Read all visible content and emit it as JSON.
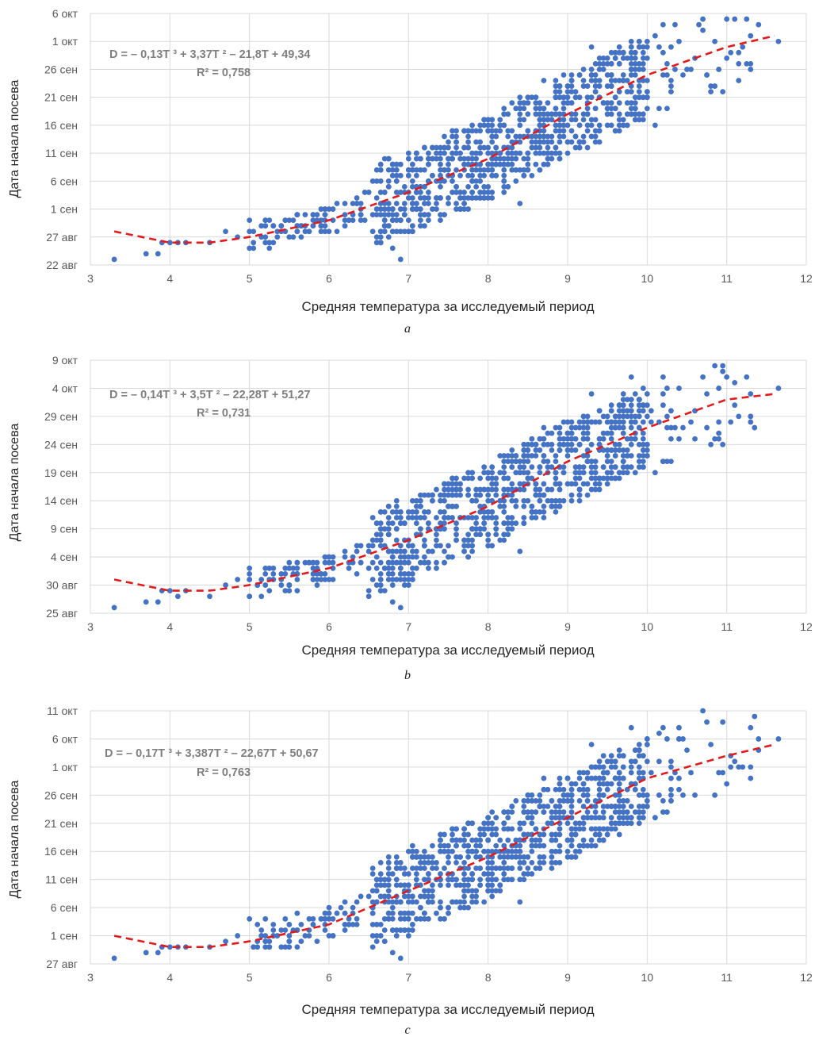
{
  "charts": [
    {
      "caption": "a",
      "equation": "D = – 0,13T ³ + 3,37T ² – 21,8T + 49,34",
      "r2": "R² = 0,758",
      "xlabel": "Средняя температура за исследуемый период",
      "ylabel": "Дата начала посева"
    },
    {
      "caption": "b",
      "equation": "D = – 0,14T ³ + 3,5T ² – 22,28T + 51,27",
      "r2": "R² = 0,731",
      "xlabel": "Средняя температура за исследуемый период",
      "ylabel": "Дата начала посева"
    },
    {
      "caption": "c",
      "equation": "D = – 0,17T ³ + 3,387T ² – 22,67T + 50,67",
      "r2": "R² = 0,763",
      "xlabel": "Средняя температура за исследуемый период",
      "ylabel": "Дата начала посева"
    }
  ],
  "colors": {
    "points": "#4472c4",
    "trend": "#e31a1c",
    "grid": "#d9d9d9"
  },
  "chart_data": [
    {
      "type": "scatter",
      "xlabel": "Средняя температура за исследуемый период",
      "ylabel": "Дата начала посева",
      "xlim": [
        3,
        12
      ],
      "xticks": [
        "3",
        "4",
        "5",
        "6",
        "7",
        "8",
        "9",
        "10",
        "11",
        "12"
      ],
      "ylim": [
        "22 авг",
        "6 окт"
      ],
      "yticks": [
        "22 авг",
        "27 авг",
        "1 сен",
        "6 сен",
        "11 сен",
        "16 сен",
        "21 сен",
        "26 сен",
        "1 окт",
        "6 окт"
      ],
      "grid": true,
      "trendline": {
        "type": "polynomial",
        "degree": 3,
        "equation": "D = – 0,13T ³ + 3,37T ² – 21,8T + 49,34",
        "r2": 0.758,
        "points": [
          [
            3.3,
            "28 авг"
          ],
          [
            4.0,
            "26 авг"
          ],
          [
            4.5,
            "26 авг"
          ],
          [
            5.0,
            "27 авг"
          ],
          [
            6.0,
            "30 авг"
          ],
          [
            7.0,
            "4 сен"
          ],
          [
            8.0,
            "10 сен"
          ],
          [
            9.0,
            "18 сен"
          ],
          [
            10.0,
            "25 сен"
          ],
          [
            11.0,
            "30 сен"
          ],
          [
            11.6,
            "2 окт"
          ]
        ]
      },
      "points": [
        [
          3.3,
          "23 авг"
        ],
        [
          3.7,
          "24 авг"
        ],
        [
          3.85,
          "24 авг"
        ],
        [
          3.9,
          "26 авг"
        ],
        [
          4.0,
          "26 авг"
        ],
        [
          4.1,
          "26 авг"
        ],
        [
          4.2,
          "26 авг"
        ],
        [
          4.5,
          "26 авг"
        ],
        [
          4.7,
          "28 авг"
        ],
        [
          4.85,
          "27 авг"
        ],
        [
          5.0,
          "30 авг"
        ],
        [
          5.2,
          "30 авг"
        ],
        [
          5.4,
          "29 авг"
        ],
        [
          5.6,
          "31 авг"
        ],
        [
          5.8,
          "30 авг"
        ],
        [
          6.0,
          "1 сен"
        ],
        [
          6.2,
          "2 сен"
        ],
        [
          6.4,
          "2 сен"
        ],
        [
          6.6,
          "3 сен"
        ],
        [
          6.8,
          "25 авг"
        ],
        [
          6.9,
          "23 авг"
        ],
        [
          7.0,
          "28 авг"
        ],
        [
          7.1,
          "5 сен"
        ],
        [
          7.2,
          "8 сен"
        ],
        [
          7.3,
          "12 сен"
        ],
        [
          7.4,
          "6 сен"
        ],
        [
          7.5,
          "10 сен"
        ],
        [
          7.6,
          "15 сен"
        ],
        [
          7.7,
          "4 сен"
        ],
        [
          7.8,
          "11 сен"
        ],
        [
          7.9,
          "13 сен"
        ],
        [
          8.0,
          "9 сен"
        ],
        [
          8.1,
          "14 сен"
        ],
        [
          8.2,
          "18 сен"
        ],
        [
          8.3,
          "11 сен"
        ],
        [
          8.4,
          "2 сен"
        ],
        [
          8.5,
          "20 сен"
        ],
        [
          8.6,
          "13 сен"
        ],
        [
          8.7,
          "24 сен"
        ],
        [
          8.8,
          "10 сен"
        ],
        [
          8.9,
          "17 сен"
        ],
        [
          9.0,
          "20 сен"
        ],
        [
          9.1,
          "14 сен"
        ],
        [
          9.2,
          "23 сен"
        ],
        [
          9.3,
          "30 сен"
        ],
        [
          9.4,
          "13 сен"
        ],
        [
          9.5,
          "25 сен"
        ],
        [
          9.6,
          "19 сен"
        ],
        [
          9.8,
          "1 окт"
        ],
        [
          9.9,
          "26 сен"
        ],
        [
          10.0,
          "30 сен"
        ],
        [
          10.1,
          "16 сен"
        ],
        [
          10.2,
          "4 окт"
        ],
        [
          10.3,
          "24 сен"
        ],
        [
          10.4,
          "1 окт"
        ],
        [
          10.7,
          "3 окт"
        ],
        [
          10.9,
          "26 сен"
        ],
        [
          11.1,
          "5 окт"
        ],
        [
          11.3,
          "27 сен"
        ],
        [
          11.65,
          "1 окт"
        ]
      ]
    },
    {
      "type": "scatter",
      "xlabel": "Средняя температура за исследуемый период",
      "ylabel": "Дата начала посева",
      "xlim": [
        3,
        12
      ],
      "xticks": [
        "3",
        "4",
        "5",
        "6",
        "7",
        "8",
        "9",
        "10",
        "11",
        "12"
      ],
      "ylim": [
        "25 авг",
        "9 окт"
      ],
      "yticks": [
        "25 авг",
        "30 авг",
        "4 сен",
        "9 сен",
        "14 сен",
        "19 сен",
        "24 сен",
        "29 сен",
        "4 окт",
        "9 окт"
      ],
      "grid": true,
      "trendline": {
        "type": "polynomial",
        "degree": 3,
        "equation": "D = – 0,14T ³ + 3,5T ² – 22,28T + 51,27",
        "r2": 0.731,
        "points": [
          [
            3.3,
            "31 авг"
          ],
          [
            4.0,
            "29 авг"
          ],
          [
            4.5,
            "29 авг"
          ],
          [
            5.0,
            "30 авг"
          ],
          [
            6.0,
            "2 сен"
          ],
          [
            7.0,
            "7 сен"
          ],
          [
            8.0,
            "13 сен"
          ],
          [
            9.0,
            "21 сен"
          ],
          [
            10.0,
            "27 сен"
          ],
          [
            11.0,
            "2 окт"
          ],
          [
            11.6,
            "3 окт"
          ]
        ]
      },
      "points": [
        [
          3.3,
          "26 авг"
        ],
        [
          3.7,
          "27 авг"
        ],
        [
          3.85,
          "27 авг"
        ],
        [
          3.9,
          "29 авг"
        ],
        [
          4.0,
          "29 авг"
        ],
        [
          4.1,
          "28 авг"
        ],
        [
          4.2,
          "29 авг"
        ],
        [
          4.5,
          "28 авг"
        ],
        [
          4.7,
          "30 авг"
        ],
        [
          4.85,
          "31 авг"
        ],
        [
          5.0,
          "2 сен"
        ],
        [
          5.2,
          "2 сен"
        ],
        [
          5.4,
          "31 авг"
        ],
        [
          5.6,
          "3 сен"
        ],
        [
          5.8,
          "1 сен"
        ],
        [
          6.0,
          "4 сен"
        ],
        [
          6.2,
          "5 сен"
        ],
        [
          6.4,
          "6 сен"
        ],
        [
          6.6,
          "7 сен"
        ],
        [
          6.8,
          "27 авг"
        ],
        [
          6.9,
          "26 авг"
        ],
        [
          7.0,
          "30 авг"
        ],
        [
          7.1,
          "8 сен"
        ],
        [
          7.2,
          "11 сен"
        ],
        [
          7.3,
          "15 сен"
        ],
        [
          7.4,
          "9 сен"
        ],
        [
          7.5,
          "13 сен"
        ],
        [
          7.6,
          "18 сен"
        ],
        [
          7.7,
          "7 сен"
        ],
        [
          7.8,
          "14 сен"
        ],
        [
          7.9,
          "16 сен"
        ],
        [
          8.0,
          "12 сен"
        ],
        [
          8.1,
          "17 сен"
        ],
        [
          8.2,
          "21 сен"
        ],
        [
          8.3,
          "14 сен"
        ],
        [
          8.4,
          "5 сен"
        ],
        [
          8.5,
          "23 сен"
        ],
        [
          8.6,
          "16 сен"
        ],
        [
          8.7,
          "27 сен"
        ],
        [
          8.8,
          "13 сен"
        ],
        [
          8.9,
          "20 сен"
        ],
        [
          9.0,
          "23 сен"
        ],
        [
          9.1,
          "17 сен"
        ],
        [
          9.2,
          "26 сен"
        ],
        [
          9.3,
          "3 окт"
        ],
        [
          9.4,
          "16 сен"
        ],
        [
          9.5,
          "28 сен"
        ],
        [
          9.6,
          "22 сен"
        ],
        [
          9.8,
          "6 окт"
        ],
        [
          9.9,
          "29 сен"
        ],
        [
          10.0,
          "3 окт"
        ],
        [
          10.1,
          "19 сен"
        ],
        [
          10.2,
          "6 окт"
        ],
        [
          10.3,
          "27 сен"
        ],
        [
          10.4,
          "4 окт"
        ],
        [
          10.7,
          "6 окт"
        ],
        [
          10.9,
          "28 сен"
        ],
        [
          11.1,
          "1 окт"
        ],
        [
          11.3,
          "29 сен"
        ],
        [
          11.65,
          "4 окт"
        ]
      ]
    },
    {
      "type": "scatter",
      "xlabel": "Средняя температура за исследуемый период",
      "ylabel": "Дата начала посева",
      "xlim": [
        3,
        12
      ],
      "xticks": [
        "3",
        "4",
        "5",
        "6",
        "7",
        "8",
        "9",
        "10",
        "11",
        "12"
      ],
      "ylim": [
        "27 авг",
        "11 окт"
      ],
      "yticks": [
        "27 авг",
        "1 сен",
        "6 сен",
        "11 сен",
        "16 сен",
        "21 сен",
        "26 сен",
        "1 окт",
        "6 окт",
        "11 окт"
      ],
      "grid": true,
      "trendline": {
        "type": "polynomial",
        "degree": 3,
        "equation": "D = – 0,17T ³ + 3,387T ² – 22,67T + 50,67",
        "r2": 0.763,
        "points": [
          [
            3.3,
            "1 сен"
          ],
          [
            4.0,
            "30 авг"
          ],
          [
            4.5,
            "30 авг"
          ],
          [
            5.0,
            "31 авг"
          ],
          [
            6.0,
            "3 сен"
          ],
          [
            7.0,
            "9 сен"
          ],
          [
            8.0,
            "15 сен"
          ],
          [
            9.0,
            "22 сен"
          ],
          [
            10.0,
            "29 сен"
          ],
          [
            11.0,
            "3 окт"
          ],
          [
            11.6,
            "5 окт"
          ]
        ]
      },
      "points": [
        [
          3.3,
          "28 авг"
        ],
        [
          3.7,
          "29 авг"
        ],
        [
          3.85,
          "29 авг"
        ],
        [
          3.9,
          "30 авг"
        ],
        [
          4.0,
          "30 авг"
        ],
        [
          4.1,
          "30 авг"
        ],
        [
          4.2,
          "30 авг"
        ],
        [
          4.5,
          "30 авг"
        ],
        [
          4.7,
          "31 авг"
        ],
        [
          4.85,
          "1 сен"
        ],
        [
          5.0,
          "4 сен"
        ],
        [
          5.2,
          "4 сен"
        ],
        [
          5.4,
          "2 сен"
        ],
        [
          5.6,
          "5 сен"
        ],
        [
          5.8,
          "3 сен"
        ],
        [
          6.0,
          "6 сен"
        ],
        [
          6.2,
          "7 сен"
        ],
        [
          6.4,
          "8 сен"
        ],
        [
          6.6,
          "9 сен"
        ],
        [
          6.8,
          "29 авг"
        ],
        [
          6.9,
          "28 авг"
        ],
        [
          7.0,
          "1 сен"
        ],
        [
          7.1,
          "10 сен"
        ],
        [
          7.2,
          "13 сен"
        ],
        [
          7.3,
          "17 сен"
        ],
        [
          7.4,
          "11 сен"
        ],
        [
          7.5,
          "15 сен"
        ],
        [
          7.6,
          "20 сен"
        ],
        [
          7.7,
          "9 сен"
        ],
        [
          7.8,
          "16 сен"
        ],
        [
          7.9,
          "18 сен"
        ],
        [
          8.0,
          "14 сен"
        ],
        [
          8.1,
          "19 сен"
        ],
        [
          8.2,
          "23 сен"
        ],
        [
          8.3,
          "16 сен"
        ],
        [
          8.4,
          "7 сен"
        ],
        [
          8.5,
          "25 сен"
        ],
        [
          8.6,
          "18 сен"
        ],
        [
          8.7,
          "29 сен"
        ],
        [
          8.8,
          "15 сен"
        ],
        [
          8.9,
          "22 сен"
        ],
        [
          9.0,
          "25 сен"
        ],
        [
          9.1,
          "19 сен"
        ],
        [
          9.2,
          "28 сен"
        ],
        [
          9.3,
          "5 окт"
        ],
        [
          9.4,
          "18 сен"
        ],
        [
          9.5,
          "30 сен"
        ],
        [
          9.6,
          "24 сен"
        ],
        [
          9.8,
          "8 окт"
        ],
        [
          9.9,
          "1 окт"
        ],
        [
          10.0,
          "5 окт"
        ],
        [
          10.1,
          "22 сен"
        ],
        [
          10.2,
          "8 окт"
        ],
        [
          10.3,
          "29 сен"
        ],
        [
          10.4,
          "6 окт"
        ],
        [
          10.7,
          "11 окт"
        ],
        [
          10.9,
          "30 сен"
        ],
        [
          11.1,
          "2 окт"
        ],
        [
          11.3,
          "1 окт"
        ],
        [
          11.65,
          "6 окт"
        ]
      ]
    }
  ]
}
